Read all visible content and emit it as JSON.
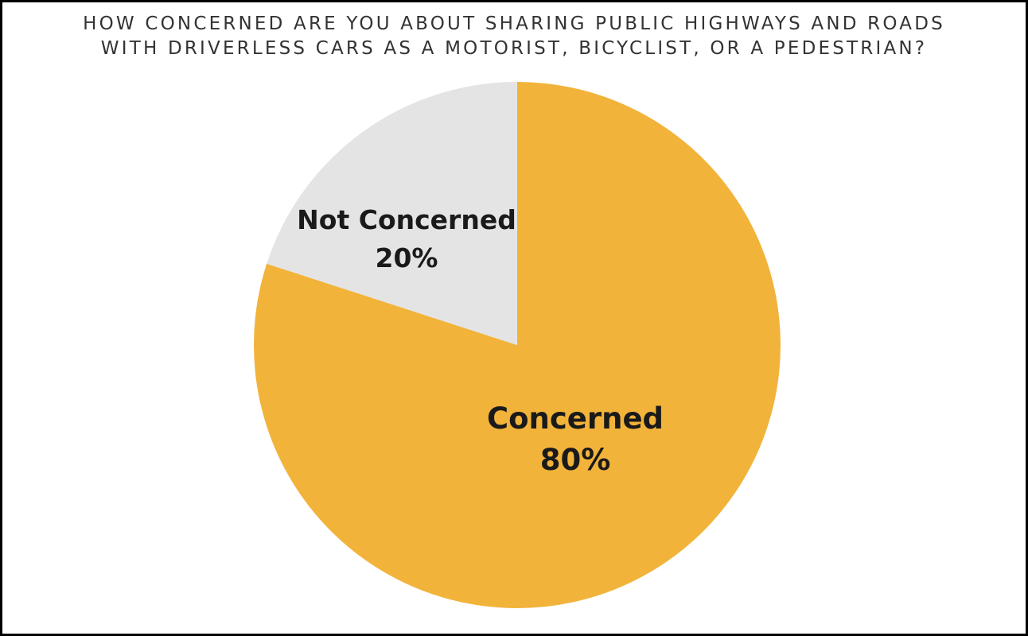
{
  "chart_data": {
    "type": "pie",
    "title_lines": [
      "How concerned are you about sharing public highways and roads",
      "with driverless cars as a motorist, bicyclist, or a pedestrian?"
    ],
    "slices": [
      {
        "label": "Concerned",
        "value": 80,
        "value_label": "80%",
        "color": "#F2B33A"
      },
      {
        "label": "Not Concerned",
        "value": 20,
        "value_label": "20%",
        "color": "#E4E4E4"
      }
    ],
    "start_angle": "12 o'clock",
    "direction": "clockwise",
    "legend": "none"
  }
}
